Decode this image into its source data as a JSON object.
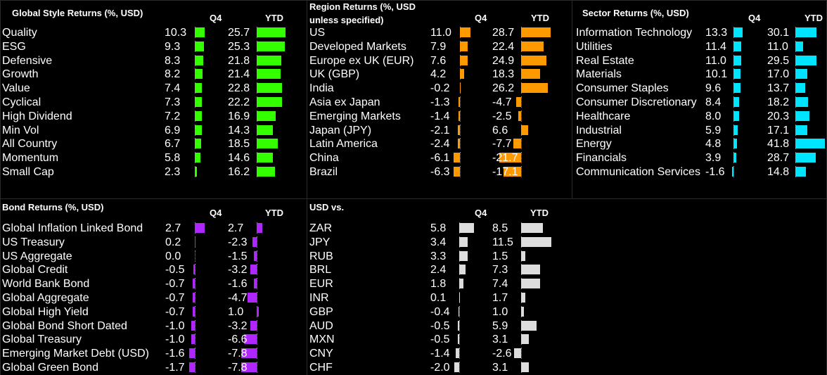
{
  "chart_data": [
    {
      "type": "table",
      "title": "Global Style Returns (%, USD)",
      "columns": [
        "Q4",
        "YTD"
      ],
      "color": "#33ff00",
      "rows": [
        {
          "name": "Quality",
          "q4": 10.3,
          "ytd": 25.7
        },
        {
          "name": "ESG",
          "q4": 9.3,
          "ytd": 25.3
        },
        {
          "name": "Defensive",
          "q4": 8.3,
          "ytd": 21.8
        },
        {
          "name": "Growth",
          "q4": 8.2,
          "ytd": 21.4
        },
        {
          "name": "Value",
          "q4": 7.4,
          "ytd": 22.8
        },
        {
          "name": "Cyclical",
          "q4": 7.3,
          "ytd": 22.2
        },
        {
          "name": "High Dividend",
          "q4": 7.2,
          "ytd": 16.9
        },
        {
          "name": "Min Vol",
          "q4": 6.9,
          "ytd": 14.3
        },
        {
          "name": "All Country",
          "q4": 6.7,
          "ytd": 18.5
        },
        {
          "name": "Momentum",
          "q4": 5.8,
          "ytd": 14.6
        },
        {
          "name": "Small Cap",
          "q4": 2.3,
          "ytd": 16.2
        }
      ]
    },
    {
      "type": "table",
      "title": "Region Returns (%, USD unless specified)",
      "columns": [
        "Q4",
        "YTD"
      ],
      "color": "#ff9900",
      "rows": [
        {
          "name": "US",
          "q4": 11.0,
          "ytd": 28.7
        },
        {
          "name": "Developed Markets",
          "q4": 7.9,
          "ytd": 22.4
        },
        {
          "name": "Europe ex UK (EUR)",
          "q4": 7.6,
          "ytd": 24.9
        },
        {
          "name": "UK (GBP)",
          "q4": 4.2,
          "ytd": 18.3
        },
        {
          "name": "India",
          "q4": -0.2,
          "ytd": 26.2
        },
        {
          "name": "Asia ex Japan",
          "q4": -1.3,
          "ytd": -4.7
        },
        {
          "name": "Emerging Markets",
          "q4": -1.4,
          "ytd": -2.5
        },
        {
          "name": "Japan (JPY)",
          "q4": -2.1,
          "ytd": 6.6
        },
        {
          "name": "Latin America",
          "q4": -2.4,
          "ytd": -7.7
        },
        {
          "name": "China",
          "q4": -6.1,
          "ytd": -21.7
        },
        {
          "name": "Brazil",
          "q4": -6.3,
          "ytd": -17.1
        }
      ]
    },
    {
      "type": "table",
      "title": "Sector Returns (%, USD)",
      "columns": [
        "Q4",
        "YTD"
      ],
      "color": "#00e5ff",
      "rows": [
        {
          "name": "Information Technology",
          "q4": 13.3,
          "ytd": 30.1
        },
        {
          "name": "Utilities",
          "q4": 11.4,
          "ytd": 11.0
        },
        {
          "name": "Real Estate",
          "q4": 11.0,
          "ytd": 29.5
        },
        {
          "name": "Materials",
          "q4": 10.1,
          "ytd": 17.0
        },
        {
          "name": "Consumer Staples",
          "q4": 9.6,
          "ytd": 13.7
        },
        {
          "name": "Consumer Discretionary",
          "q4": 8.4,
          "ytd": 18.2
        },
        {
          "name": "Healthcare",
          "q4": 8.0,
          "ytd": 20.3
        },
        {
          "name": "Industrial",
          "q4": 5.9,
          "ytd": 17.1
        },
        {
          "name": "Energy",
          "q4": 4.8,
          "ytd": 41.8
        },
        {
          "name": "Financials",
          "q4": 3.9,
          "ytd": 28.7
        },
        {
          "name": "Communication Services",
          "q4": -1.6,
          "ytd": 14.8
        }
      ]
    },
    {
      "type": "table",
      "title": "Bond Returns (%, USD)",
      "columns": [
        "Q4",
        "YTD"
      ],
      "color": "#b026ff",
      "rows": [
        {
          "name": "Global Inflation Linked Bond",
          "q4": 2.7,
          "ytd": 2.7
        },
        {
          "name": "US Treasury",
          "q4": 0.2,
          "ytd": -2.3
        },
        {
          "name": "US Aggregate",
          "q4": 0.0,
          "ytd": -1.5
        },
        {
          "name": "Global Credit",
          "q4": -0.5,
          "ytd": -3.2
        },
        {
          "name": "World Bank Bond",
          "q4": -0.7,
          "ytd": -1.6
        },
        {
          "name": "Global Aggregate",
          "q4": -0.7,
          "ytd": -4.7
        },
        {
          "name": "Global High Yield",
          "q4": -0.7,
          "ytd": 1.0
        },
        {
          "name": "Global Bond Short Dated",
          "q4": -1.0,
          "ytd": -3.2
        },
        {
          "name": "Global Treasury",
          "q4": -1.0,
          "ytd": -6.6
        },
        {
          "name": "Emerging Market Debt (USD)",
          "q4": -1.6,
          "ytd": -7.8
        },
        {
          "name": "Global Green Bond",
          "q4": -1.7,
          "ytd": -7.8
        }
      ]
    },
    {
      "type": "table",
      "title": "USD vs.",
      "columns": [
        "Q4",
        "YTD"
      ],
      "color": "#dddddd",
      "rows": [
        {
          "name": "ZAR",
          "q4": 5.8,
          "ytd": 8.5
        },
        {
          "name": "JPY",
          "q4": 3.4,
          "ytd": 11.5
        },
        {
          "name": "RUB",
          "q4": 3.3,
          "ytd": 1.5
        },
        {
          "name": "BRL",
          "q4": 2.4,
          "ytd": 7.3
        },
        {
          "name": "EUR",
          "q4": 1.8,
          "ytd": 7.4
        },
        {
          "name": "INR",
          "q4": 0.1,
          "ytd": 1.7
        },
        {
          "name": "GBP",
          "q4": -0.4,
          "ytd": 1.0
        },
        {
          "name": "AUD",
          "q4": -0.5,
          "ytd": 5.9
        },
        {
          "name": "MXN",
          "q4": -0.5,
          "ytd": 3.1
        },
        {
          "name": "CNY",
          "q4": -1.4,
          "ytd": -2.6
        },
        {
          "name": "CHF",
          "q4": -2.0,
          "ytd": 3.1
        }
      ]
    }
  ]
}
